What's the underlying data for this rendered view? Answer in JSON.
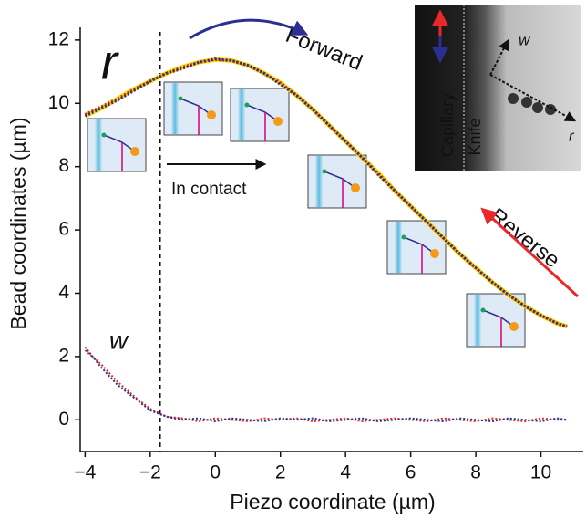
{
  "chart_data": {
    "type": "line",
    "xlabel": "Piezo coordinate (µm)",
    "ylabel": "Bead coordinates (µm)",
    "x": [
      -4,
      -3.5,
      -3,
      -2.5,
      -2,
      -1.5,
      -1,
      -0.5,
      0,
      0.5,
      1,
      1.5,
      2,
      2.5,
      3,
      3.5,
      4,
      4.5,
      5,
      5.5,
      6,
      6.5,
      7,
      7.5,
      8,
      8.5,
      9,
      9.5,
      10,
      10.5,
      10.8
    ],
    "series": [
      {
        "color": "#f2e200",
        "values": [
          9.6,
          9.85,
          10.15,
          10.45,
          10.7,
          10.95,
          11.15,
          11.3,
          11.38,
          11.35,
          11.2,
          10.95,
          10.65,
          10.25,
          9.8,
          9.3,
          8.8,
          8.3,
          7.8,
          7.25,
          6.75,
          6.25,
          5.75,
          5.25,
          4.8,
          4.35,
          3.95,
          3.6,
          3.3,
          3.05,
          2.95
        ]
      },
      {
        "color": "#e8282b",
        "values": [
          9.65,
          9.9,
          10.15,
          10.45,
          10.7,
          10.95,
          11.15,
          11.3,
          11.38,
          11.35,
          11.2,
          10.95,
          10.65,
          10.25,
          9.8,
          9.3,
          8.8,
          8.3,
          7.8,
          7.25,
          6.75,
          6.25,
          5.75,
          5.25,
          4.8,
          4.35,
          3.95,
          3.6,
          3.3,
          3.05,
          2.95
        ]
      },
      {
        "color": "#2b2f8f",
        "values": [
          9.6,
          9.85,
          10.1,
          10.4,
          10.7,
          10.95,
          11.1,
          11.3,
          11.4,
          11.35,
          11.2,
          10.95,
          10.6,
          10.25,
          9.8,
          9.3,
          8.8,
          8.3,
          7.75,
          7.25,
          6.75,
          6.25,
          5.75,
          5.25,
          4.8,
          4.35,
          3.95,
          3.6,
          3.3,
          3.05,
          2.95
        ]
      },
      {
        "color": "#e8282b",
        "values": [
          2.2,
          1.75,
          1.2,
          0.75,
          0.35,
          0.1,
          0.05,
          -0.05,
          0.05,
          0,
          -0.05,
          0.05,
          0,
          0.05,
          -0.05,
          0,
          0.05,
          -0.05,
          0,
          0.05,
          0,
          -0.05,
          0.05,
          0,
          -0.05,
          0.05,
          0,
          -0.05,
          0.05,
          0,
          0
        ]
      },
      {
        "color": "#2b2f8f",
        "values": [
          2.3,
          1.65,
          1.1,
          0.7,
          0.3,
          0.1,
          0,
          0.05,
          -0.05,
          0.05,
          0,
          -0.05,
          0.05,
          0,
          0.05,
          -0.05,
          0,
          0.05,
          -0.05,
          0,
          0.05,
          0,
          -0.05,
          0.05,
          0,
          -0.05,
          0.05,
          0,
          -0.05,
          0.05,
          0
        ]
      }
    ],
    "xlim": [
      -4.15,
      11.3
    ],
    "ylim": [
      -1,
      12.4
    ],
    "xticks": [
      -4,
      -2,
      0,
      2,
      4,
      6,
      8,
      10
    ],
    "yticks": [
      0,
      2,
      4,
      6,
      8,
      10,
      12
    ],
    "contact_x": -1.7,
    "annotations": [
      "r",
      "w",
      "Forward",
      "Reverse",
      "In contact"
    ],
    "inset_labels": [
      "Capillary",
      "Knife",
      "w",
      "r"
    ]
  }
}
